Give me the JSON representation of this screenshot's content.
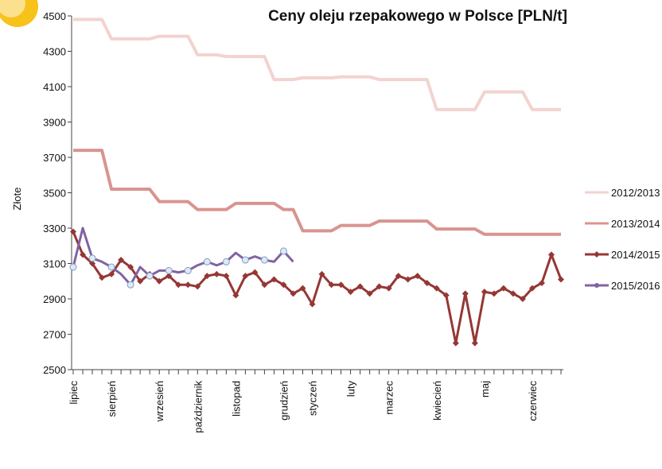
{
  "chart_data": {
    "type": "line",
    "title": "Ceny oleju rzepakowego w Polsce [PLN/t]",
    "y_label": "Złote",
    "categories": [
      "lipiec",
      null,
      null,
      null,
      "sierpień",
      null,
      null,
      null,
      null,
      "wrzesień",
      null,
      null,
      null,
      "październik",
      null,
      null,
      null,
      "listopad",
      null,
      null,
      null,
      null,
      "grudzień",
      null,
      null,
      "styczeń",
      null,
      null,
      null,
      "luty",
      null,
      null,
      null,
      "marzec",
      null,
      null,
      null,
      null,
      "kwiecień",
      null,
      null,
      null,
      null,
      "maj",
      null,
      null,
      null,
      null,
      "czerwiec",
      null,
      null,
      null
    ],
    "ylim": [
      2500,
      4500
    ],
    "yticks": [
      2500,
      2700,
      2900,
      3100,
      3300,
      3500,
      3700,
      3900,
      4100,
      4300,
      4500
    ],
    "grid": false,
    "legend": "right",
    "series": [
      {
        "name": "2012/2013",
        "color": "#f2d3d0",
        "marker": "none",
        "values": [
          4480,
          4480,
          4480,
          4480,
          4370,
          4370,
          4370,
          4370,
          4370,
          4385,
          4385,
          4385,
          4385,
          4280,
          4280,
          4280,
          4270,
          4270,
          4270,
          4270,
          4270,
          4140,
          4140,
          4140,
          4150,
          4150,
          4150,
          4150,
          4155,
          4155,
          4155,
          4155,
          4140,
          4140,
          4140,
          4140,
          4140,
          4140,
          3970,
          3970,
          3970,
          3970,
          3970,
          4070,
          4070,
          4070,
          4070,
          4070,
          3970,
          3970,
          3970,
          3970
        ]
      },
      {
        "name": "2013/2014",
        "color": "#d99490",
        "marker": "none",
        "values": [
          3740,
          3740,
          3740,
          3740,
          3520,
          3520,
          3520,
          3520,
          3520,
          3450,
          3450,
          3450,
          3450,
          3405,
          3405,
          3405,
          3405,
          3440,
          3440,
          3440,
          3440,
          3440,
          3405,
          3405,
          3285,
          3285,
          3285,
          3285,
          3315,
          3315,
          3315,
          3315,
          3340,
          3340,
          3340,
          3340,
          3340,
          3340,
          3295,
          3295,
          3295,
          3295,
          3295,
          3265,
          3265,
          3265,
          3265,
          3265,
          3265,
          3265,
          3265,
          3265
        ]
      },
      {
        "name": "2014/2015",
        "color": "#953735",
        "marker": "diamond",
        "values": [
          3280,
          3150,
          3100,
          3020,
          3040,
          3120,
          3080,
          3000,
          3040,
          3000,
          3030,
          2980,
          2980,
          2970,
          3030,
          3040,
          3030,
          2920,
          3030,
          3050,
          2980,
          3010,
          2980,
          2930,
          2960,
          2870,
          3040,
          2980,
          2980,
          2940,
          2970,
          2930,
          2970,
          2960,
          3030,
          3010,
          3030,
          2990,
          2960,
          2920,
          2650,
          2930,
          2650,
          2940,
          2930,
          2960,
          2930,
          2900,
          2960,
          2990,
          3150,
          3010
        ]
      },
      {
        "name": "2015/2016",
        "color": "#8064a2",
        "marker": "circle",
        "values": [
          3080,
          3300,
          3130,
          3110,
          3080,
          3040,
          2980,
          3080,
          3030,
          3060,
          3060,
          3050,
          3060,
          3090,
          3110,
          3090,
          3110,
          3160,
          3120,
          3140,
          3120,
          3110,
          3170,
          3110,
          null,
          null,
          null,
          null,
          null,
          null,
          null,
          null,
          null,
          null,
          null,
          null,
          null,
          null,
          null,
          null,
          null,
          null,
          null,
          null,
          null,
          null,
          null,
          null,
          null,
          null,
          null,
          null
        ]
      }
    ]
  }
}
